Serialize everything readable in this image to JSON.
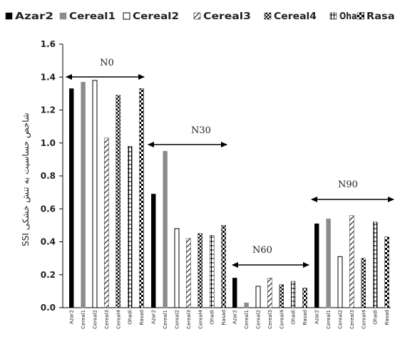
{
  "chart_data": {
    "type": "bar",
    "ylabel": "SSI شاخص حساسیت به تنش خشکی",
    "ylim": [
      0,
      1.6
    ],
    "yticks": [
      "0.0",
      "0.2",
      "0.4",
      "0.6",
      "0.8",
      "1.0",
      "1.2",
      "1.4",
      "1.6"
    ],
    "grid": false,
    "legend_position": "top",
    "categories": [
      "Azar2",
      "Cereal1",
      "Cereal2",
      "Cereal3",
      "Cereal4",
      "Ohadi",
      "Rasad"
    ],
    "series": [
      {
        "name": "Azar2",
        "pattern": "solid-black"
      },
      {
        "name": "Cereal1",
        "pattern": "solid-gray"
      },
      {
        "name": "Cereal2",
        "pattern": "white-outline"
      },
      {
        "name": "Cereal3",
        "pattern": "diagonal-stripes"
      },
      {
        "name": "Cereal4",
        "pattern": "dotted"
      },
      {
        "name": "Ohadi",
        "pattern": "horizontal-ladder"
      },
      {
        "name": "Rasad",
        "pattern": "checker"
      }
    ],
    "groups": [
      {
        "name": "N0",
        "values": [
          1.33,
          1.37,
          1.38,
          1.03,
          1.29,
          0.98,
          1.33
        ]
      },
      {
        "name": "N30",
        "values": [
          0.69,
          0.95,
          0.48,
          0.42,
          0.45,
          0.44,
          0.5
        ]
      },
      {
        "name": "N60",
        "values": [
          0.18,
          0.03,
          0.13,
          0.18,
          0.14,
          0.16,
          0.12
        ]
      },
      {
        "name": "N90",
        "values": [
          0.51,
          0.54,
          0.31,
          0.56,
          0.3,
          0.52,
          0.43
        ]
      }
    ]
  },
  "colors": {
    "black": "#000000",
    "gray": "#8c8c8c",
    "axis": "#000000"
  }
}
